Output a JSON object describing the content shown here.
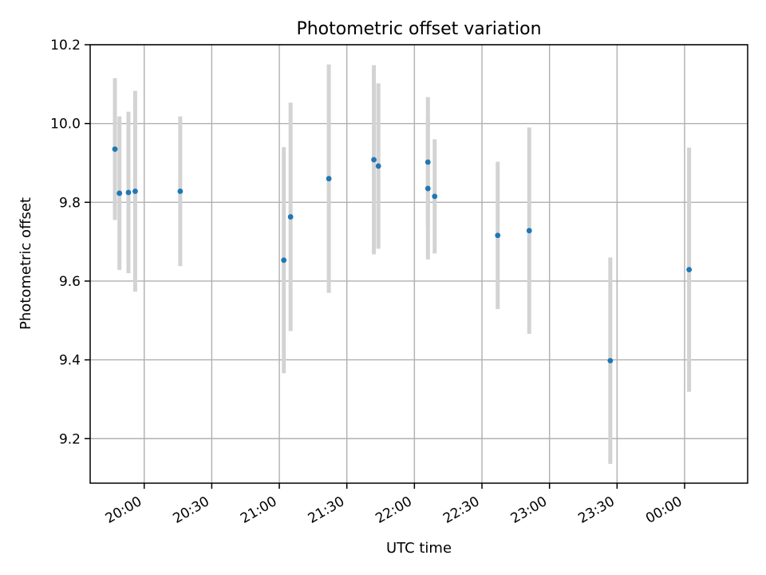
{
  "chart_data": {
    "type": "scatter",
    "title": "Photometric offset variation",
    "xlabel": "UTC time",
    "ylabel": "Photometric offset",
    "xlim": [
      "19:36",
      "00:28"
    ],
    "ylim": [
      9.087,
      10.2
    ],
    "grid": true,
    "x_ticks": [
      "20:00",
      "20:30",
      "21:00",
      "21:30",
      "22:00",
      "22:30",
      "23:00",
      "23:30",
      "00:00"
    ],
    "y_ticks": [
      9.2,
      9.4,
      9.6,
      9.8,
      10.0,
      10.2
    ],
    "y_tick_labels": [
      "9.2",
      "9.4",
      "9.6",
      "9.8",
      "10.0",
      "10.2"
    ],
    "series": [
      {
        "style": "points with error bars",
        "point_color": "#1f77b4",
        "errorbar_color": "#d3d3d3",
        "points": [
          {
            "x": "19:47",
            "y": 9.935,
            "err": 0.18
          },
          {
            "x": "19:49",
            "y": 9.823,
            "err": 0.195
          },
          {
            "x": "19:53",
            "y": 9.825,
            "err": 0.205
          },
          {
            "x": "19:56",
            "y": 9.828,
            "err": 0.255
          },
          {
            "x": "20:16",
            "y": 9.828,
            "err": 0.19
          },
          {
            "x": "21:02",
            "y": 9.653,
            "err": 0.287
          },
          {
            "x": "21:05",
            "y": 9.763,
            "err": 0.29
          },
          {
            "x": "21:22",
            "y": 9.86,
            "err": 0.29
          },
          {
            "x": "21:42",
            "y": 9.908,
            "err": 0.24
          },
          {
            "x": "21:44",
            "y": 9.892,
            "err": 0.21
          },
          {
            "x": "22:06",
            "y": 9.902,
            "err": 0.165
          },
          {
            "x": "22:06",
            "y": 9.835,
            "err": 0.18
          },
          {
            "x": "22:09",
            "y": 9.815,
            "err": 0.145
          },
          {
            "x": "22:37",
            "y": 9.716,
            "err": 0.187
          },
          {
            "x": "22:51",
            "y": 9.728,
            "err": 0.262
          },
          {
            "x": "23:27",
            "y": 9.398,
            "err": 0.262
          },
          {
            "x": "00:02",
            "y": 9.629,
            "err": 0.31
          }
        ]
      }
    ]
  }
}
